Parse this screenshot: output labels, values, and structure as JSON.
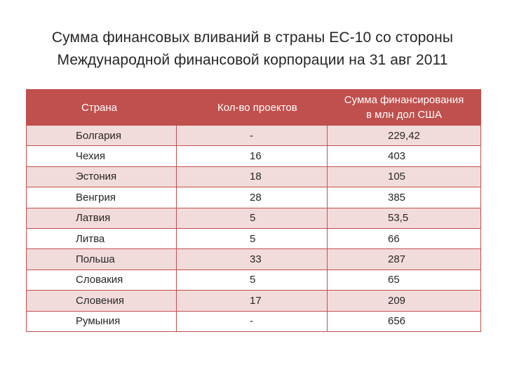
{
  "title": {
    "line1": "Сумма финансовых вливаний в страны ЕС-10 со стороны",
    "line2": "Международной финансовой корпорации на 31 авг 2011"
  },
  "table": {
    "headers": {
      "country": "Страна",
      "projects": "Кол-во проектов",
      "amount_line1": "Сумма финансирования",
      "amount_line2": "в млн дол США"
    },
    "header_color": "#c0504d",
    "stripe_color": "#f2dcdb",
    "rows": [
      {
        "country": "Болгария",
        "projects": "-",
        "amount": "229,42"
      },
      {
        "country": "Чехия",
        "projects": "16",
        "amount": "403"
      },
      {
        "country": "Эстония",
        "projects": "18",
        "amount": "105"
      },
      {
        "country": "Венгрия",
        "projects": "28",
        "amount": "385"
      },
      {
        "country": "Латвия",
        "projects": "5",
        "amount": "53,5"
      },
      {
        "country": "Литва",
        "projects": "5",
        "amount": "66"
      },
      {
        "country": "Польша",
        "projects": "33",
        "amount": "287"
      },
      {
        "country": "Словакия",
        "projects": "5",
        "amount": "65"
      },
      {
        "country": "Словения",
        "projects": "17",
        "amount": "209"
      },
      {
        "country": "Румыния",
        "projects": "-",
        "amount": "656"
      }
    ]
  }
}
